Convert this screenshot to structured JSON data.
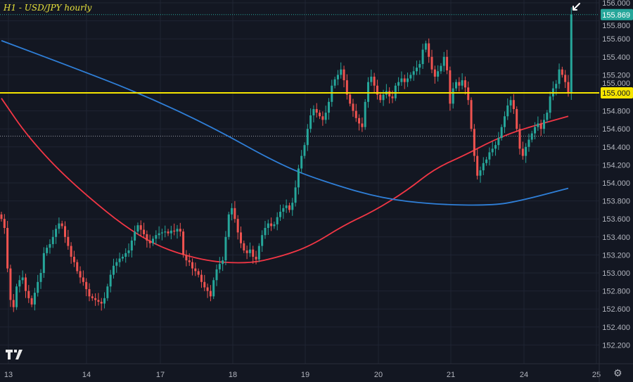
{
  "chart_data": {
    "type": "candlestick",
    "title": "H1 - USD/JPY hourly",
    "symbol": "USD/JPY",
    "timeframe": "hourly",
    "x_tick_labels": [
      "13",
      "14",
      "17",
      "18",
      "19",
      "20",
      "21",
      "24",
      "25"
    ],
    "y_tick_labels": [
      "156.000",
      "155.800",
      "155.600",
      "155.400",
      "155.200",
      "155.000",
      "154.800",
      "154.600",
      "154.400",
      "154.200",
      "154.000",
      "153.800",
      "153.600",
      "153.400",
      "153.200",
      "153.000",
      "152.800",
      "152.600",
      "152.400",
      "152.200"
    ],
    "ylim": [
      152.1,
      156.05
    ],
    "grid": true,
    "close": [
      153.6,
      153.5,
      153.05,
      152.7,
      152.62,
      152.85,
      152.92,
      152.95,
      152.8,
      152.72,
      152.65,
      152.78,
      152.9,
      153.0,
      153.22,
      153.28,
      153.32,
      153.4,
      153.49,
      153.55,
      153.52,
      153.4,
      153.3,
      153.18,
      153.12,
      153.02,
      152.95,
      152.9,
      152.82,
      152.74,
      152.72,
      152.7,
      152.68,
      152.66,
      152.72,
      152.85,
      152.98,
      153.08,
      153.12,
      153.16,
      153.18,
      153.22,
      153.25,
      153.36,
      153.46,
      153.53,
      153.48,
      153.43,
      153.36,
      153.33,
      153.38,
      153.42,
      153.44,
      153.45,
      153.46,
      153.44,
      153.47,
      153.46,
      153.49,
      153.46,
      153.2,
      153.14,
      153.12,
      153.05,
      153.02,
      152.98,
      152.9,
      152.84,
      152.8,
      152.74,
      152.92,
      153.04,
      153.1,
      153.14,
      153.4,
      153.65,
      153.72,
      153.6,
      153.45,
      153.33,
      153.25,
      153.22,
      153.26,
      153.18,
      153.15,
      153.3,
      153.42,
      153.5,
      153.55,
      153.52,
      153.54,
      153.62,
      153.68,
      153.72,
      153.75,
      153.7,
      153.78,
      153.95,
      154.16,
      154.3,
      154.42,
      154.6,
      154.75,
      154.82,
      154.78,
      154.74,
      154.7,
      154.78,
      154.9,
      155.08,
      155.15,
      155.2,
      155.26,
      155.14,
      154.98,
      154.88,
      154.8,
      154.72,
      154.66,
      154.62,
      154.9,
      155.12,
      155.18,
      155.08,
      154.98,
      154.92,
      154.98,
      155.02,
      154.96,
      154.94,
      155.08,
      155.12,
      155.16,
      155.12,
      155.16,
      155.2,
      155.24,
      155.28,
      155.32,
      155.48,
      155.55,
      155.4,
      155.26,
      155.18,
      155.24,
      155.3,
      155.4,
      155.25,
      154.88,
      155.05,
      155.12,
      155.08,
      155.14,
      155.06,
      154.92,
      154.6,
      154.3,
      154.08,
      154.14,
      154.22,
      154.26,
      154.34,
      154.38,
      154.42,
      154.5,
      154.62,
      154.74,
      154.86,
      154.92,
      154.82,
      154.6,
      154.38,
      154.3,
      154.4,
      154.48,
      154.55,
      154.62,
      154.66,
      154.6,
      154.7,
      154.78,
      154.96,
      155.05,
      155.1,
      155.26,
      155.2,
      155.12,
      155.0,
      155.869
    ],
    "last_high": 155.95,
    "moving_averages": [
      {
        "color": "#f23645",
        "points": [
          [
            0,
            154.94
          ],
          [
            9,
            154.5
          ],
          [
            23,
            154.0
          ],
          [
            46,
            153.37
          ],
          [
            65,
            153.14
          ],
          [
            81,
            153.1
          ],
          [
            92,
            153.18
          ],
          [
            102,
            153.3
          ],
          [
            113,
            153.53
          ],
          [
            123,
            153.69
          ],
          [
            134,
            153.92
          ],
          [
            143,
            154.16
          ],
          [
            153,
            154.31
          ],
          [
            162,
            154.47
          ],
          [
            171,
            154.59
          ],
          [
            187,
            154.74
          ]
        ]
      },
      {
        "color": "#2f7fd8",
        "points": [
          [
            0,
            155.58
          ],
          [
            23,
            155.29
          ],
          [
            46,
            154.99
          ],
          [
            69,
            154.63
          ],
          [
            92,
            154.2
          ],
          [
            106,
            154.02
          ],
          [
            125,
            153.83
          ],
          [
            143,
            153.76
          ],
          [
            162,
            153.75
          ],
          [
            171,
            153.8
          ],
          [
            187,
            153.94
          ]
        ]
      }
    ],
    "horizontal_line": {
      "price": 155.0,
      "label": "155.000",
      "color": "#f5e400"
    },
    "dotted_level": 154.52,
    "last_price": {
      "value": 155.869,
      "label": "155.869",
      "color": "#26a69a"
    },
    "colors": {
      "up": "#26a69a",
      "down": "#ef5350",
      "background": "#131722",
      "grid": "#1f2433",
      "axis_text": "#b2b5be"
    },
    "annotation": "arrow-pointing-to-last-candle"
  },
  "ui": {
    "logo": "TV",
    "settings_icon": "gear-icon"
  }
}
